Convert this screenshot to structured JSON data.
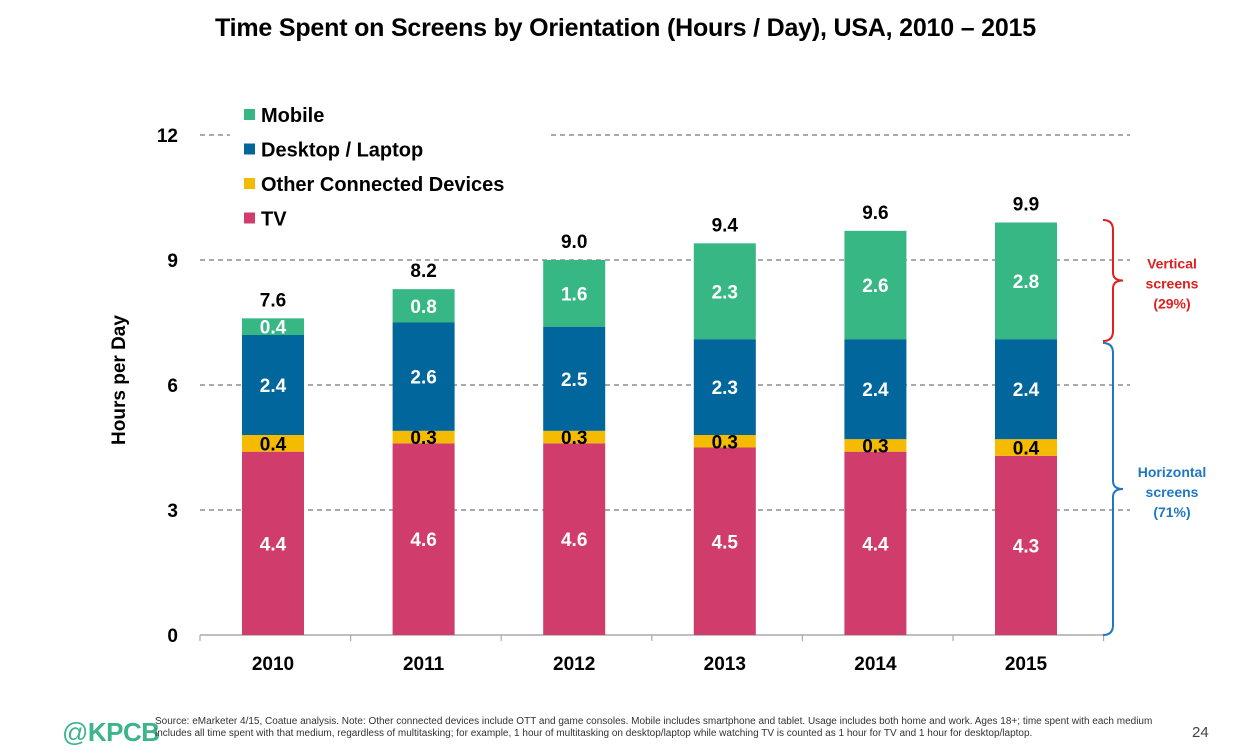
{
  "chart_data": {
    "type": "bar",
    "stacked": true,
    "title": "Time Spent on Screens by Orientation (Hours / Day), USA, 2010 – 2015",
    "xlabel": "",
    "ylabel": "Hours per Day",
    "ylim": [
      0,
      12
    ],
    "yticks": [
      0,
      3,
      6,
      9,
      12
    ],
    "grid": true,
    "legend_position": "top-left",
    "categories": [
      "2010",
      "2011",
      "2012",
      "2013",
      "2014",
      "2015"
    ],
    "series": [
      {
        "name": "TV",
        "color": "#d03c6b",
        "label_color": "#ffffff",
        "values": [
          4.4,
          4.6,
          4.6,
          4.5,
          4.4,
          4.3
        ]
      },
      {
        "name": "Other Connected Devices",
        "color": "#f5bb00",
        "label_color": "#000000",
        "values": [
          0.4,
          0.3,
          0.3,
          0.3,
          0.3,
          0.4
        ]
      },
      {
        "name": "Desktop / Laptop",
        "color": "#00669b",
        "label_color": "#ffffff",
        "values": [
          2.4,
          2.6,
          2.5,
          2.3,
          2.4,
          2.4
        ]
      },
      {
        "name": "Mobile",
        "color": "#37b784",
        "label_color": "#ffffff",
        "values": [
          0.4,
          0.8,
          1.6,
          2.3,
          2.6,
          2.8
        ]
      }
    ],
    "legend_order": [
      "Mobile",
      "Desktop / Laptop",
      "Other Connected Devices",
      "TV"
    ],
    "totals": [
      "7.6",
      "8.2",
      "9.0",
      "9.4",
      "9.6",
      "9.9"
    ],
    "annotations": [
      {
        "text_lines": [
          "Vertical",
          "screens",
          "(29%)"
        ],
        "color": "#e02020",
        "spans_series": [
          "Mobile"
        ]
      },
      {
        "text_lines": [
          "Horizontal",
          "screens",
          "(71%)"
        ],
        "color": "#1f77c4",
        "spans_series": [
          "TV",
          "Other Connected Devices",
          "Desktop / Laptop"
        ]
      }
    ]
  },
  "footer": {
    "logo_at": "@",
    "logo_text": "KPCB",
    "source": "Source: eMarketer 4/15, Coatue analysis. Note: Other connected devices include OTT and game consoles. Mobile includes smartphone and tablet. Usage includes both home and work. Ages 18+; time spent with each medium includes all time spent with that medium, regardless of multitasking; for example, 1 hour of multitasking on desktop/laptop while watching TV is counted as 1 hour for TV and 1 hour for desktop/laptop.",
    "page_number": "24"
  }
}
